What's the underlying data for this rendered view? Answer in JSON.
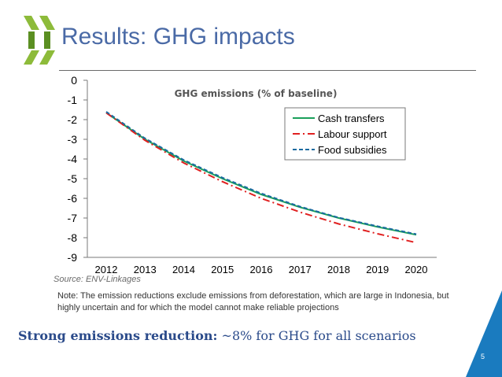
{
  "header": {
    "title": "Results: GHG impacts"
  },
  "colors": {
    "title": "#4a6aa6",
    "accent": "#1a7bbf",
    "cash": "#1aa05a",
    "labour": "#e02020",
    "food": "#1a6aa0"
  },
  "chart_data": {
    "type": "line",
    "title": "GHG emissions (% of baseline)",
    "x": [
      2012,
      2013,
      2014,
      2015,
      2016,
      2017,
      2018,
      2019,
      2020
    ],
    "y_ticks": [
      "0",
      "-1",
      "-2",
      "-3",
      "-4",
      "-5",
      "-6",
      "-7",
      "-8",
      "-9"
    ],
    "ylim": [
      -9,
      0
    ],
    "xlabel": "",
    "ylabel": "",
    "legend_position": "top-right",
    "series": [
      {
        "name": "Cash transfers",
        "style": "solid",
        "color": "#1aa05a",
        "values": [
          -1.65,
          -3.0,
          -4.1,
          -5.0,
          -5.8,
          -6.45,
          -7.0,
          -7.45,
          -7.85
        ]
      },
      {
        "name": "Labour support",
        "style": "dashdot",
        "color": "#e02020",
        "values": [
          -1.65,
          -3.05,
          -4.2,
          -5.15,
          -6.0,
          -6.7,
          -7.3,
          -7.8,
          -8.25
        ]
      },
      {
        "name": "Food subsidies",
        "style": "dashed",
        "color": "#1a6aa0",
        "values": [
          -1.6,
          -2.95,
          -4.05,
          -4.95,
          -5.75,
          -6.42,
          -6.98,
          -7.42,
          -7.82
        ]
      }
    ]
  },
  "source": "Source: ENV-Linkages",
  "note": "Note: The emission reductions exclude emissions from deforestation, which are large in Indonesia, but highly uncertain and for which the model cannot make reliable projections",
  "summary": {
    "bold": "Strong emissions reduction:",
    "rest": " ~8% for GHG for all scenarios"
  },
  "page_number": "5"
}
